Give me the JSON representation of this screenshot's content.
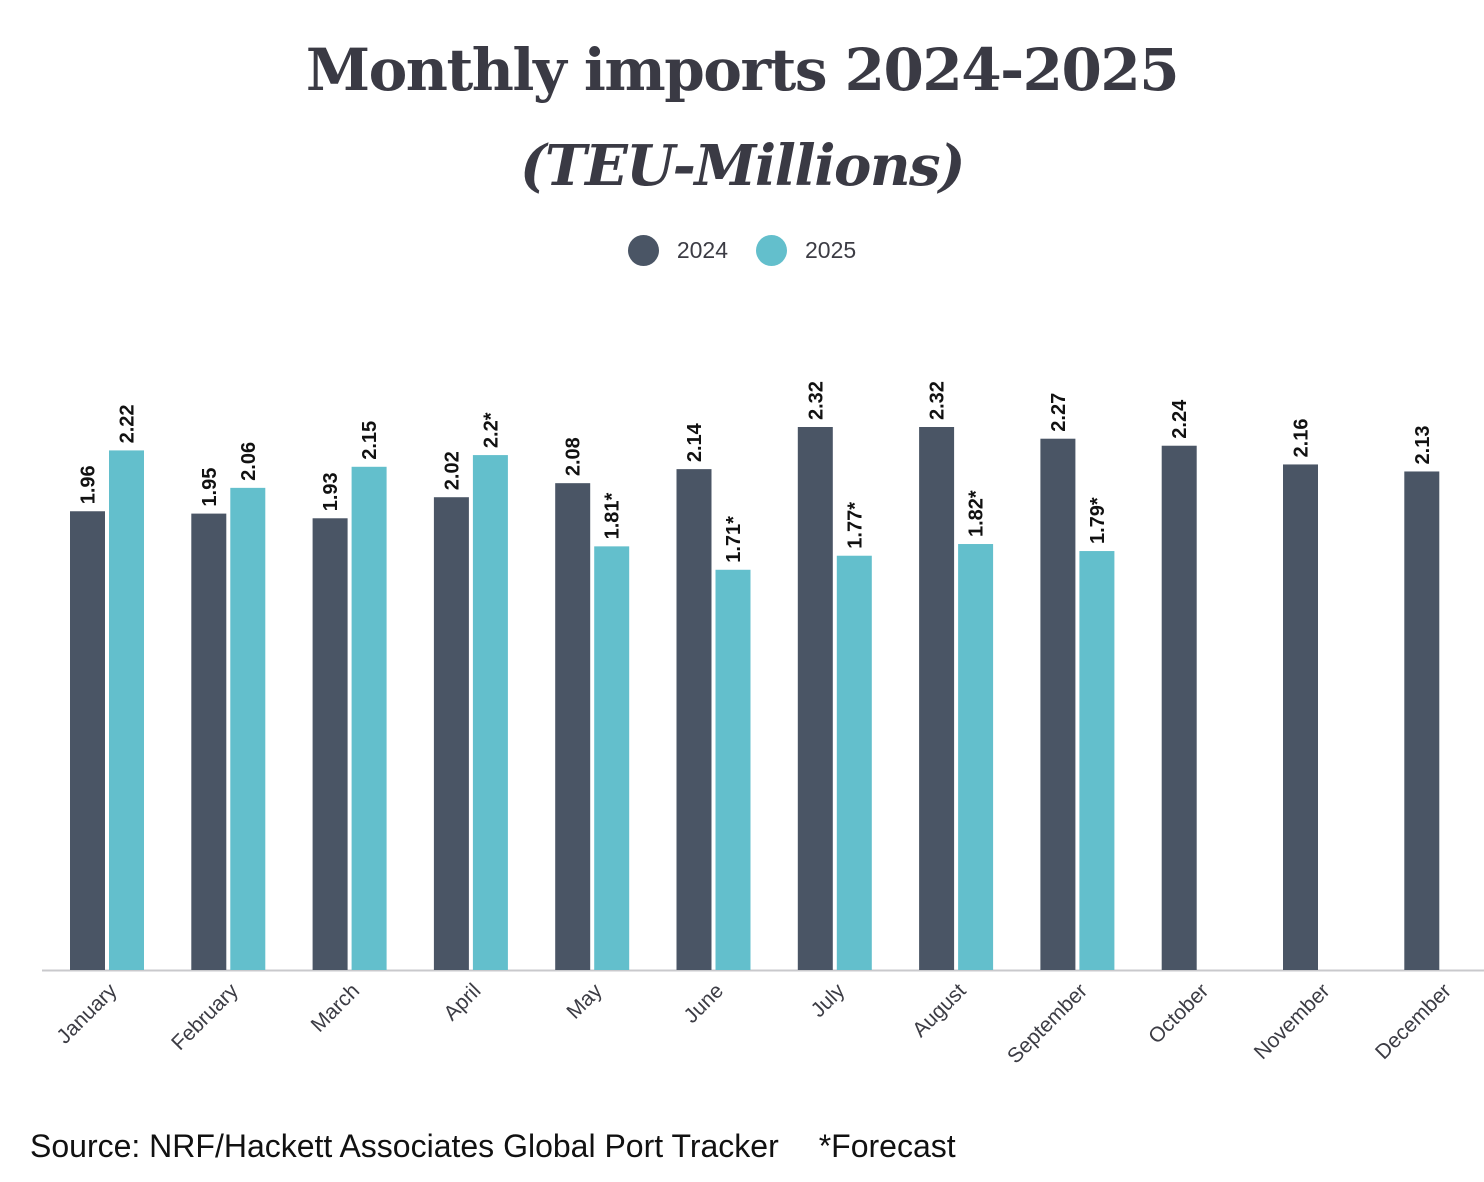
{
  "chart_data": {
    "type": "bar",
    "title": "Monthly imports 2024-2025",
    "subtitle": "(TEU-Millions)",
    "categories": [
      "January",
      "February",
      "March",
      "April",
      "May",
      "June",
      "July",
      "August",
      "September",
      "October",
      "November",
      "December"
    ],
    "series": [
      {
        "name": "2024",
        "color": "#4a5565",
        "values": [
          1.96,
          1.95,
          1.93,
          2.02,
          2.08,
          2.14,
          2.32,
          2.32,
          2.27,
          2.24,
          2.16,
          2.13
        ],
        "labels": [
          "1.96",
          "1.95",
          "1.93",
          "2.02",
          "2.08",
          "2.14",
          "2.32",
          "2.32",
          "2.27",
          "2.24",
          "2.16",
          "2.13"
        ]
      },
      {
        "name": "2025",
        "color": "#63bfcc",
        "values": [
          2.22,
          2.06,
          2.15,
          2.2,
          1.81,
          1.71,
          1.77,
          1.82,
          1.79,
          null,
          null,
          null
        ],
        "labels": [
          "2.22",
          "2.06",
          "2.15",
          "2.2*",
          "1.81*",
          "1.71*",
          "1.77*",
          "1.82*",
          "1.79*",
          null,
          null,
          null
        ]
      }
    ],
    "ylim": [
      0,
      2.32
    ],
    "grid": false,
    "legend": "top-center",
    "xlabel": "",
    "ylabel": ""
  },
  "legend": {
    "items": [
      {
        "label": "2024",
        "color": "#4a5565"
      },
      {
        "label": "2025",
        "color": "#63bfcc"
      }
    ]
  },
  "footer": {
    "source": "Source: NRF/Hackett Associates Global Port Tracker",
    "note": "*Forecast"
  }
}
